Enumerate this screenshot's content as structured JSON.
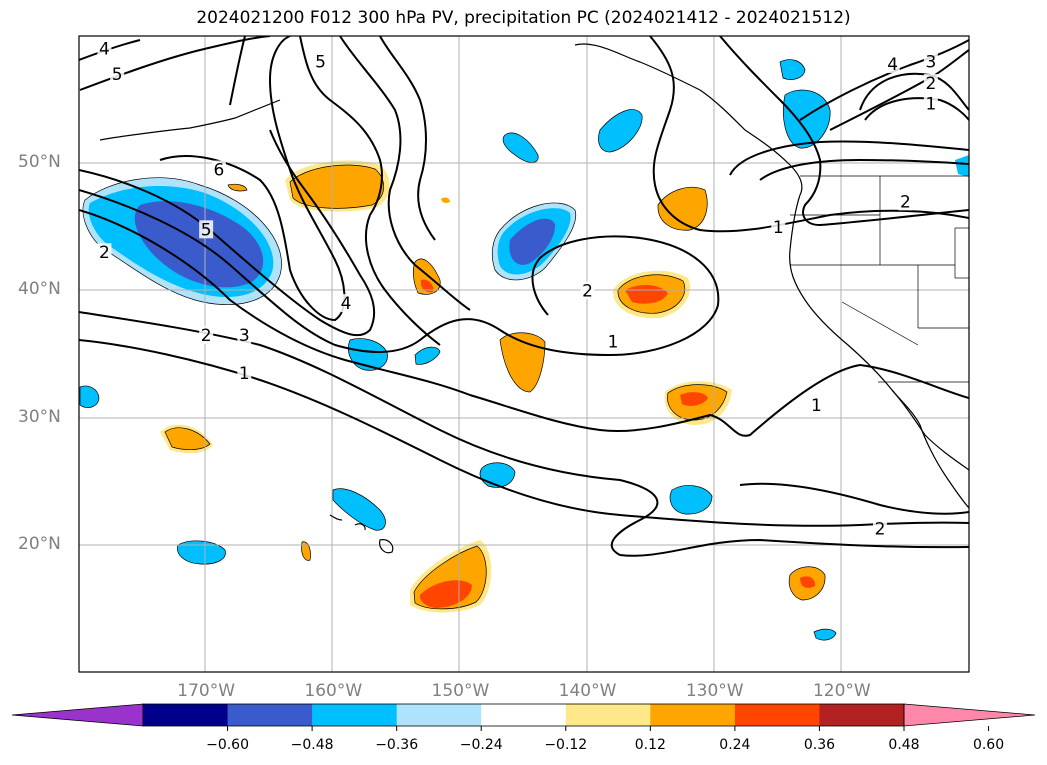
{
  "title": "2024021200 F012 300 hPa PV, precipitation PC (2024021412 - 2024021512)",
  "axes": {
    "lat_labels": [
      {
        "value": 50,
        "text": "50°N"
      },
      {
        "value": 40,
        "text": "40°N"
      },
      {
        "value": 30,
        "text": "30°N"
      },
      {
        "value": 20,
        "text": "20°N"
      }
    ],
    "lon_labels": [
      {
        "value": -170,
        "text": "170°W"
      },
      {
        "value": -160,
        "text": "160°W"
      },
      {
        "value": -150,
        "text": "150°W"
      },
      {
        "value": -140,
        "text": "140°W"
      },
      {
        "value": -130,
        "text": "130°W"
      },
      {
        "value": -120,
        "text": "120°W"
      }
    ],
    "lon_range": [
      -180,
      -110
    ],
    "lat_range": [
      10,
      60
    ]
  },
  "colorbar": {
    "colors": [
      "#9933cc",
      "#00008b",
      "#3a5bcc",
      "#00bfff",
      "#aee3fb",
      "#ffffff",
      "#ffe88a",
      "#ffa500",
      "#ff4500",
      "#b22222",
      "#ff88aa"
    ],
    "ticks": [
      "−0.60",
      "−0.48",
      "−0.36",
      "−0.24",
      "−0.12",
      "0.12",
      "0.24",
      "0.36",
      "0.48",
      "0.60"
    ],
    "extend": "both"
  },
  "contour_labels": [
    {
      "text": "4",
      "lon": -178,
      "lat": 59
    },
    {
      "text": "5",
      "lon": -177,
      "lat": 57
    },
    {
      "text": "5",
      "lon": -161,
      "lat": 58
    },
    {
      "text": "6",
      "lon": -169,
      "lat": 49.5
    },
    {
      "text": "5",
      "lon": -170,
      "lat": 44.8
    },
    {
      "text": "2",
      "lon": -178,
      "lat": 43
    },
    {
      "text": "4",
      "lon": -159,
      "lat": 39
    },
    {
      "text": "2",
      "lon": -170,
      "lat": 36.5
    },
    {
      "text": "3",
      "lon": -167,
      "lat": 36.5
    },
    {
      "text": "1",
      "lon": -167,
      "lat": 33.5
    },
    {
      "text": "2",
      "lon": -140,
      "lat": 40
    },
    {
      "text": "1",
      "lon": -138,
      "lat": 36
    },
    {
      "text": "1",
      "lon": -125,
      "lat": 45
    },
    {
      "text": "1",
      "lon": -122,
      "lat": 31
    },
    {
      "text": "2",
      "lon": -115,
      "lat": 47
    },
    {
      "text": "2",
      "lon": -117,
      "lat": 21.3
    },
    {
      "text": "4",
      "lon": -116,
      "lat": 57.8
    },
    {
      "text": "3",
      "lon": -113,
      "lat": 58
    },
    {
      "text": "2",
      "lon": -113,
      "lat": 56.3
    },
    {
      "text": "1",
      "lon": -113,
      "lat": 54.7
    }
  ]
}
